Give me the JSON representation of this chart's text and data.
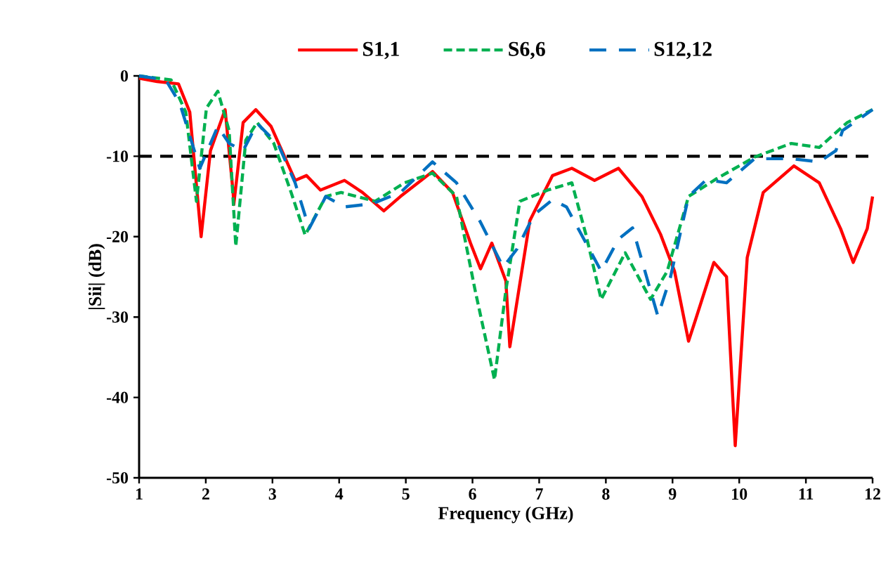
{
  "chart_data": {
    "type": "line",
    "xlabel": "Frequency (GHz)",
    "ylabel": "|Sii| (dB)",
    "xlim": [
      1,
      12
    ],
    "ylim": [
      -50,
      0
    ],
    "xticks": [
      1,
      2,
      3,
      4,
      5,
      6,
      7,
      8,
      9,
      10,
      11,
      12
    ],
    "yticks": [
      -50,
      -40,
      -30,
      -20,
      -10,
      0
    ],
    "grid": false,
    "legend": "top",
    "marker": "none",
    "ref_lines": [
      {
        "axis": "y",
        "value": -10,
        "color": "#000000",
        "line_style": "dashed"
      }
    ],
    "series": [
      {
        "name": "S1,1",
        "color": "#ff0000",
        "line_style": "solid",
        "x": [
          1,
          1.27,
          1.59,
          1.76,
          1.93,
          2.07,
          2.29,
          2.41,
          2.42,
          2.56,
          2.75,
          2.98,
          3.34,
          3.51,
          3.72,
          4.08,
          4.35,
          4.67,
          4.92,
          5.4,
          5.7,
          5.97,
          6.12,
          6.29,
          6.5,
          6.56,
          6.86,
          7.2,
          7.49,
          7.83,
          8.19,
          8.54,
          8.82,
          9.03,
          9.24,
          9.35,
          9.62,
          9.81,
          9.94,
          10.12,
          10.36,
          10.82,
          11.2,
          11.52,
          11.71,
          11.92,
          12
        ],
        "values": [
          -0.3,
          -0.7,
          -1,
          -4.5,
          -20,
          -9.3,
          -4.2,
          -14.5,
          -16,
          -5.8,
          -4.2,
          -6.3,
          -13,
          -12.4,
          -14.2,
          -13,
          -14.5,
          -16.8,
          -15,
          -11.9,
          -14.5,
          -20.8,
          -24,
          -20.8,
          -25.5,
          -33.7,
          -18,
          -12.4,
          -11.5,
          -13,
          -11.5,
          -15,
          -19.7,
          -24.3,
          -33,
          -30.2,
          -23.2,
          -25,
          -46,
          -22.6,
          -14.5,
          -11.2,
          -13.3,
          -19,
          -23.2,
          -19,
          -15
        ]
      },
      {
        "name": "S6,6",
        "color": "#00b050",
        "line_style": "dashed",
        "x": [
          1,
          1.48,
          1.7,
          1.86,
          2.01,
          2.18,
          2.35,
          2.45,
          2.6,
          2.77,
          3.02,
          3.28,
          3.49,
          3.8,
          4.03,
          4.54,
          4.98,
          5.4,
          5.76,
          6.04,
          6.33,
          6.5,
          6.71,
          7.13,
          7.49,
          7.7,
          7.93,
          8.29,
          8.67,
          8.92,
          9.24,
          9.66,
          10.23,
          10.78,
          11.2,
          11.62,
          12
        ],
        "values": [
          0,
          -0.5,
          -4.5,
          -15.6,
          -4,
          -1.9,
          -6.8,
          -21.2,
          -8,
          -5.8,
          -8.4,
          -14.5,
          -19.8,
          -15,
          -14.5,
          -15.6,
          -13.3,
          -12.1,
          -15,
          -26.7,
          -37.8,
          -26.7,
          -15.6,
          -14.2,
          -13.3,
          -19.7,
          -27.8,
          -22,
          -27.8,
          -24.3,
          -15,
          -12.8,
          -10.1,
          -8.4,
          -8.9,
          -5.8,
          -4.2
        ]
      },
      {
        "name": "S12,12",
        "color": "#0070c0",
        "line_style": "dashed",
        "x": [
          1,
          1.4,
          1.61,
          1.91,
          2.18,
          2.35,
          2.56,
          2.77,
          3.09,
          3.34,
          3.55,
          3.8,
          4.08,
          4.5,
          4.92,
          5.4,
          5.76,
          6.12,
          6.46,
          6.67,
          6.92,
          7.2,
          7.41,
          7.93,
          8.19,
          8.4,
          8.78,
          8.97,
          9.24,
          9.51,
          9.81,
          10.23,
          10.78,
          11.2,
          11.45,
          11.55,
          12
        ],
        "values": [
          0,
          -0.5,
          -3.4,
          -11.5,
          -6.3,
          -8.4,
          -9.3,
          -5.9,
          -8.6,
          -13.3,
          -19,
          -15,
          -16.3,
          -15.9,
          -14.5,
          -10.7,
          -13.3,
          -18.2,
          -23.8,
          -21.5,
          -17.3,
          -15.4,
          -16.3,
          -24.3,
          -20.3,
          -18.9,
          -29.9,
          -25,
          -15,
          -12.9,
          -13.3,
          -10.3,
          -10.3,
          -10.7,
          -9.3,
          -6.8,
          -4.2
        ]
      }
    ]
  }
}
